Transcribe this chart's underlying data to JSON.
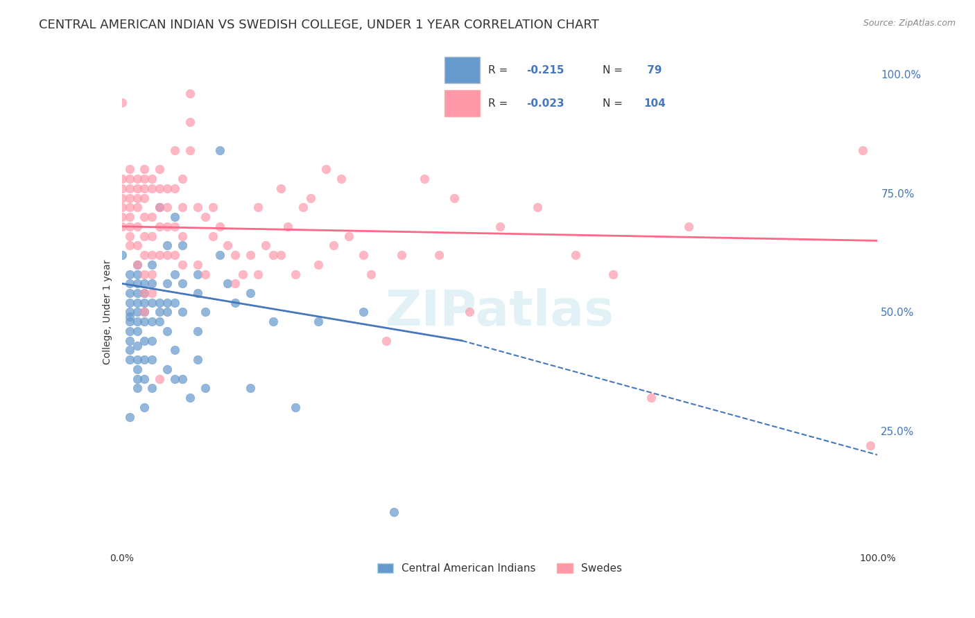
{
  "title": "CENTRAL AMERICAN INDIAN VS SWEDISH COLLEGE, UNDER 1 YEAR CORRELATION CHART",
  "source": "Source: ZipAtlas.com",
  "xlabel": "",
  "ylabel": "College, Under 1 year",
  "xlim": [
    0.0,
    1.0
  ],
  "ylim": [
    0.0,
    1.0
  ],
  "x_tick_labels": [
    "0.0%",
    "100.0%"
  ],
  "y_tick_labels_left": [],
  "y_tick_labels_right": [
    "100.0%",
    "75.0%",
    "50.0%",
    "25.0%"
  ],
  "y_tick_positions_right": [
    1.0,
    0.75,
    0.5,
    0.25
  ],
  "legend_r1": "R = -0.215",
  "legend_n1": "N =  79",
  "legend_r2": "R = -0.023",
  "legend_n2": "N = 104",
  "blue_color": "#6699CC",
  "pink_color": "#FF99AA",
  "trend_blue_solid": true,
  "trend_pink_solid": true,
  "watermark": "ZIPatlas",
  "blue_points": [
    [
      0.0,
      0.62
    ],
    [
      0.01,
      0.58
    ],
    [
      0.01,
      0.56
    ],
    [
      0.01,
      0.54
    ],
    [
      0.01,
      0.52
    ],
    [
      0.01,
      0.5
    ],
    [
      0.01,
      0.49
    ],
    [
      0.01,
      0.48
    ],
    [
      0.01,
      0.46
    ],
    [
      0.01,
      0.44
    ],
    [
      0.01,
      0.42
    ],
    [
      0.01,
      0.4
    ],
    [
      0.02,
      0.6
    ],
    [
      0.02,
      0.58
    ],
    [
      0.02,
      0.56
    ],
    [
      0.02,
      0.54
    ],
    [
      0.02,
      0.52
    ],
    [
      0.02,
      0.5
    ],
    [
      0.02,
      0.48
    ],
    [
      0.02,
      0.46
    ],
    [
      0.02,
      0.43
    ],
    [
      0.02,
      0.4
    ],
    [
      0.02,
      0.38
    ],
    [
      0.02,
      0.36
    ],
    [
      0.02,
      0.34
    ],
    [
      0.03,
      0.56
    ],
    [
      0.03,
      0.54
    ],
    [
      0.03,
      0.52
    ],
    [
      0.03,
      0.5
    ],
    [
      0.03,
      0.48
    ],
    [
      0.03,
      0.44
    ],
    [
      0.03,
      0.4
    ],
    [
      0.03,
      0.36
    ],
    [
      0.03,
      0.3
    ],
    [
      0.04,
      0.6
    ],
    [
      0.04,
      0.56
    ],
    [
      0.04,
      0.52
    ],
    [
      0.04,
      0.48
    ],
    [
      0.04,
      0.44
    ],
    [
      0.04,
      0.4
    ],
    [
      0.04,
      0.34
    ],
    [
      0.05,
      0.72
    ],
    [
      0.05,
      0.52
    ],
    [
      0.05,
      0.5
    ],
    [
      0.05,
      0.48
    ],
    [
      0.06,
      0.64
    ],
    [
      0.06,
      0.56
    ],
    [
      0.06,
      0.52
    ],
    [
      0.06,
      0.5
    ],
    [
      0.06,
      0.46
    ],
    [
      0.06,
      0.38
    ],
    [
      0.07,
      0.7
    ],
    [
      0.07,
      0.58
    ],
    [
      0.07,
      0.52
    ],
    [
      0.07,
      0.42
    ],
    [
      0.07,
      0.36
    ],
    [
      0.08,
      0.64
    ],
    [
      0.08,
      0.56
    ],
    [
      0.08,
      0.5
    ],
    [
      0.08,
      0.36
    ],
    [
      0.09,
      0.32
    ],
    [
      0.1,
      0.58
    ],
    [
      0.1,
      0.54
    ],
    [
      0.1,
      0.46
    ],
    [
      0.1,
      0.4
    ],
    [
      0.11,
      0.5
    ],
    [
      0.11,
      0.34
    ],
    [
      0.13,
      0.84
    ],
    [
      0.13,
      0.62
    ],
    [
      0.14,
      0.56
    ],
    [
      0.15,
      0.52
    ],
    [
      0.17,
      0.54
    ],
    [
      0.17,
      0.34
    ],
    [
      0.2,
      0.48
    ],
    [
      0.23,
      0.3
    ],
    [
      0.26,
      0.48
    ],
    [
      0.32,
      0.5
    ],
    [
      0.36,
      0.08
    ],
    [
      0.01,
      0.28
    ]
  ],
  "pink_points": [
    [
      0.0,
      0.78
    ],
    [
      0.0,
      0.76
    ],
    [
      0.0,
      0.74
    ],
    [
      0.0,
      0.72
    ],
    [
      0.0,
      0.7
    ],
    [
      0.0,
      0.68
    ],
    [
      0.01,
      0.8
    ],
    [
      0.01,
      0.78
    ],
    [
      0.01,
      0.76
    ],
    [
      0.01,
      0.74
    ],
    [
      0.01,
      0.72
    ],
    [
      0.01,
      0.7
    ],
    [
      0.01,
      0.68
    ],
    [
      0.01,
      0.66
    ],
    [
      0.01,
      0.64
    ],
    [
      0.02,
      0.78
    ],
    [
      0.02,
      0.76
    ],
    [
      0.02,
      0.74
    ],
    [
      0.02,
      0.72
    ],
    [
      0.02,
      0.68
    ],
    [
      0.02,
      0.64
    ],
    [
      0.02,
      0.6
    ],
    [
      0.03,
      0.8
    ],
    [
      0.03,
      0.78
    ],
    [
      0.03,
      0.76
    ],
    [
      0.03,
      0.74
    ],
    [
      0.03,
      0.7
    ],
    [
      0.03,
      0.66
    ],
    [
      0.03,
      0.62
    ],
    [
      0.03,
      0.58
    ],
    [
      0.03,
      0.54
    ],
    [
      0.03,
      0.5
    ],
    [
      0.04,
      0.78
    ],
    [
      0.04,
      0.76
    ],
    [
      0.04,
      0.7
    ],
    [
      0.04,
      0.66
    ],
    [
      0.04,
      0.62
    ],
    [
      0.04,
      0.58
    ],
    [
      0.04,
      0.54
    ],
    [
      0.05,
      0.8
    ],
    [
      0.05,
      0.76
    ],
    [
      0.05,
      0.72
    ],
    [
      0.05,
      0.68
    ],
    [
      0.05,
      0.62
    ],
    [
      0.05,
      0.36
    ],
    [
      0.06,
      0.76
    ],
    [
      0.06,
      0.72
    ],
    [
      0.06,
      0.68
    ],
    [
      0.06,
      0.62
    ],
    [
      0.07,
      0.84
    ],
    [
      0.07,
      0.76
    ],
    [
      0.07,
      0.68
    ],
    [
      0.07,
      0.62
    ],
    [
      0.08,
      0.78
    ],
    [
      0.08,
      0.72
    ],
    [
      0.08,
      0.66
    ],
    [
      0.08,
      0.6
    ],
    [
      0.09,
      0.96
    ],
    [
      0.09,
      0.9
    ],
    [
      0.09,
      0.84
    ],
    [
      0.1,
      0.72
    ],
    [
      0.1,
      0.6
    ],
    [
      0.11,
      0.7
    ],
    [
      0.11,
      0.58
    ],
    [
      0.12,
      0.72
    ],
    [
      0.12,
      0.66
    ],
    [
      0.13,
      0.68
    ],
    [
      0.14,
      0.64
    ],
    [
      0.15,
      0.62
    ],
    [
      0.15,
      0.56
    ],
    [
      0.16,
      0.58
    ],
    [
      0.17,
      0.62
    ],
    [
      0.18,
      0.72
    ],
    [
      0.18,
      0.58
    ],
    [
      0.19,
      0.64
    ],
    [
      0.2,
      0.62
    ],
    [
      0.21,
      0.76
    ],
    [
      0.21,
      0.62
    ],
    [
      0.22,
      0.68
    ],
    [
      0.23,
      0.58
    ],
    [
      0.24,
      0.72
    ],
    [
      0.25,
      0.74
    ],
    [
      0.26,
      0.6
    ],
    [
      0.27,
      0.8
    ],
    [
      0.28,
      0.64
    ],
    [
      0.29,
      0.78
    ],
    [
      0.3,
      0.66
    ],
    [
      0.32,
      0.62
    ],
    [
      0.33,
      0.58
    ],
    [
      0.35,
      0.44
    ],
    [
      0.37,
      0.62
    ],
    [
      0.4,
      0.78
    ],
    [
      0.42,
      0.62
    ],
    [
      0.44,
      0.74
    ],
    [
      0.46,
      0.5
    ],
    [
      0.5,
      0.68
    ],
    [
      0.55,
      0.72
    ],
    [
      0.6,
      0.62
    ],
    [
      0.65,
      0.58
    ],
    [
      0.7,
      0.32
    ],
    [
      0.75,
      0.68
    ],
    [
      0.98,
      0.84
    ],
    [
      0.99,
      0.22
    ],
    [
      0.0,
      0.94
    ]
  ],
  "blue_trendline": [
    [
      0.0,
      0.56
    ],
    [
      0.45,
      0.44
    ]
  ],
  "blue_trendline_ext": [
    [
      0.45,
      0.44
    ],
    [
      1.0,
      0.2
    ]
  ],
  "pink_trendline": [
    [
      0.0,
      0.68
    ],
    [
      1.0,
      0.65
    ]
  ],
  "background_color": "#ffffff",
  "grid_color": "#dddddd",
  "title_fontsize": 13,
  "axis_label_fontsize": 10
}
